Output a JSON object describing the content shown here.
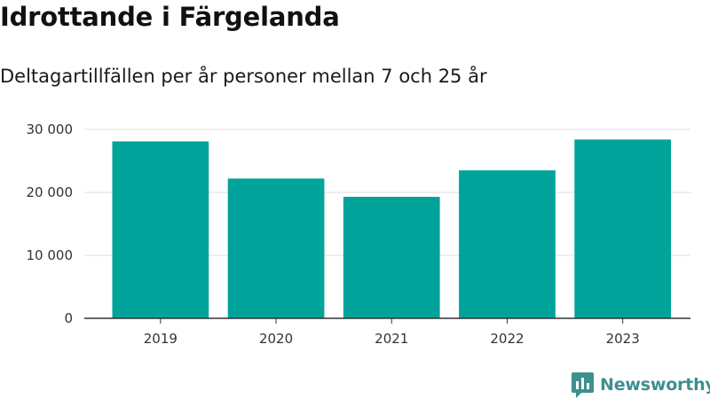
{
  "title": "Idrottande i Färgelanda",
  "subtitle": "Deltagartillfällen per år personer mellan 7 och 25 år",
  "brand": {
    "name": "Newsworthy",
    "icon": "newsworthy-logo-icon",
    "color": "#3e8f8f"
  },
  "chart_data": {
    "type": "bar",
    "categories": [
      "2019",
      "2020",
      "2021",
      "2022",
      "2023"
    ],
    "values": [
      28100,
      22200,
      19300,
      23500,
      28400
    ],
    "ylim": [
      0,
      30000
    ],
    "yticks": [
      {
        "value": 0,
        "label": "0"
      },
      {
        "value": 10000,
        "label": "10 000"
      },
      {
        "value": 20000,
        "label": "20 000"
      },
      {
        "value": 30000,
        "label": "30 000"
      }
    ],
    "bar_color": "#00a39a",
    "grid": true,
    "legend": false
  }
}
